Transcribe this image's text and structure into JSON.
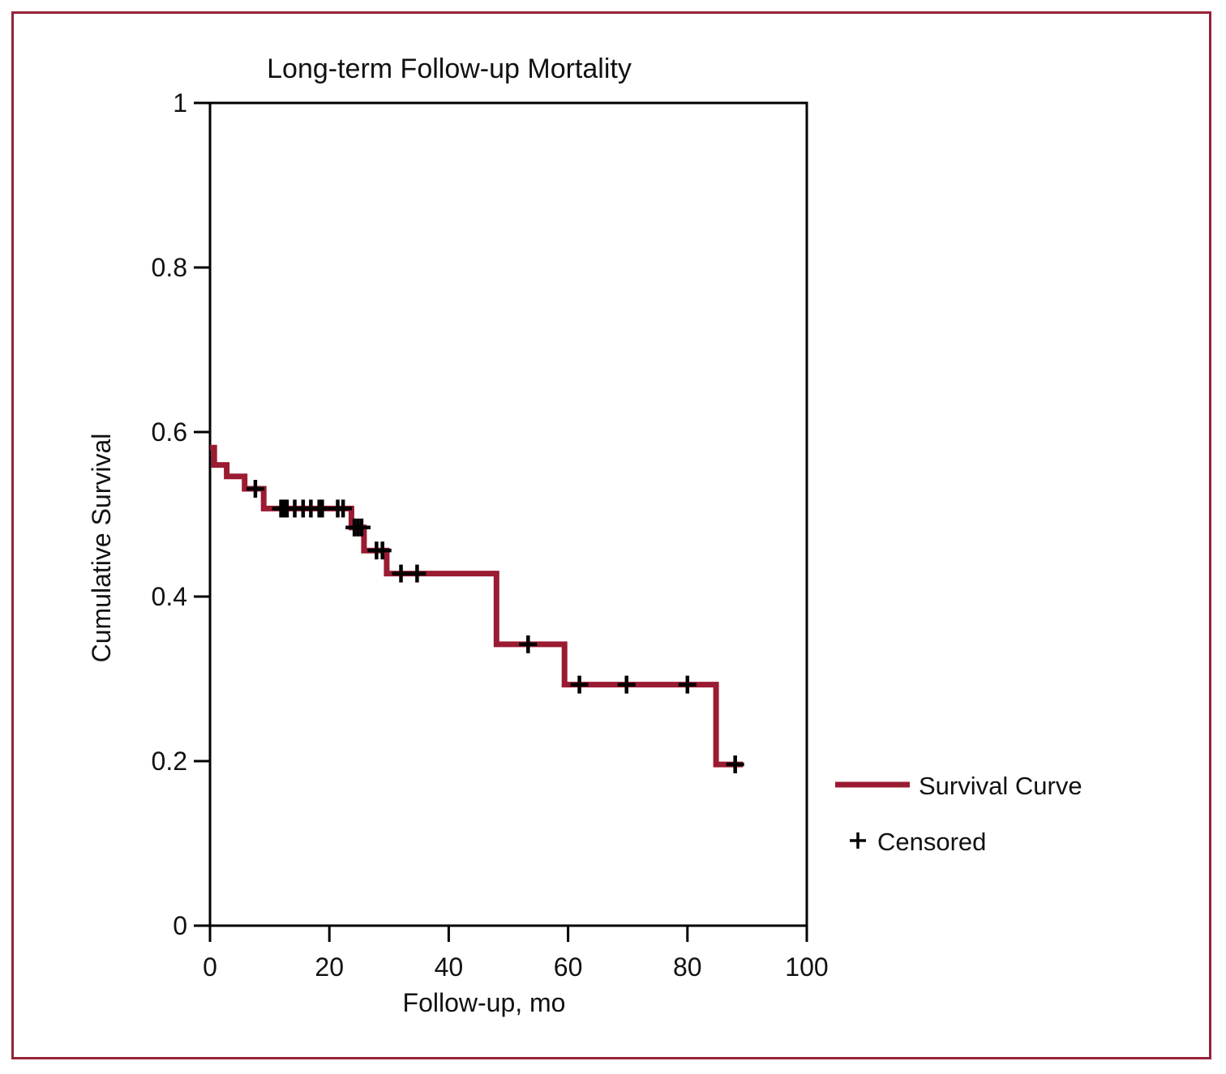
{
  "figure": {
    "border_color": "#962339",
    "background_color": "#ffffff"
  },
  "chart_data": {
    "type": "line",
    "subtype": "kaplan-meier-step-survival",
    "title": "Long-term Follow-up Mortality",
    "xlabel": "Follow-up, mo",
    "ylabel": "Cumulative Survival",
    "xlim": [
      0,
      100
    ],
    "ylim": [
      0,
      1
    ],
    "grid": false,
    "frame": true,
    "xticks": [
      {
        "value": 0,
        "label": "0"
      },
      {
        "value": 20,
        "label": "20"
      },
      {
        "value": 40,
        "label": "40"
      },
      {
        "value": 60,
        "label": "60"
      },
      {
        "value": 80,
        "label": "80"
      },
      {
        "value": 100,
        "label": "100"
      }
    ],
    "yticks": [
      {
        "value": 0,
        "label": "0"
      },
      {
        "value": 0.2,
        "label": "0.2"
      },
      {
        "value": 0.4,
        "label": "0.4"
      },
      {
        "value": 0.6,
        "label": "0.6"
      },
      {
        "value": 0.8,
        "label": "0.8"
      },
      {
        "value": 1,
        "label": "1"
      }
    ],
    "legend": {
      "position": "right-bottom",
      "items": [
        {
          "label": "Survival Curve",
          "marker": "line",
          "color": "#9a1b32"
        },
        {
          "label": "Censored",
          "marker": "plus",
          "color": "#000000"
        }
      ]
    },
    "series": [
      {
        "name": "Survival Curve",
        "color": "#9a1b32",
        "steps": [
          {
            "t": 0,
            "s": 0.581
          },
          {
            "t": 0.7,
            "s": 0.56
          },
          {
            "t": 2.8,
            "s": 0.546
          },
          {
            "t": 5.8,
            "s": 0.531
          },
          {
            "t": 9.0,
            "s": 0.507
          },
          {
            "t": 23.7,
            "s": 0.484
          },
          {
            "t": 25.8,
            "s": 0.456
          },
          {
            "t": 29.6,
            "s": 0.428
          },
          {
            "t": 48.0,
            "s": 0.342
          },
          {
            "t": 59.4,
            "s": 0.293
          },
          {
            "t": 84.8,
            "s": 0.196
          }
        ],
        "end_t": 89.3
      }
    ],
    "censored_marker_color": "#000000",
    "censored": [
      {
        "t": 7.6,
        "s": 0.531
      },
      {
        "t": 11.9,
        "s": 0.507
      },
      {
        "t": 12.4,
        "s": 0.507
      },
      {
        "t": 12.9,
        "s": 0.507
      },
      {
        "t": 14.2,
        "s": 0.507
      },
      {
        "t": 15.6,
        "s": 0.507
      },
      {
        "t": 16.9,
        "s": 0.507
      },
      {
        "t": 18.3,
        "s": 0.507
      },
      {
        "t": 18.8,
        "s": 0.507
      },
      {
        "t": 21.4,
        "s": 0.507
      },
      {
        "t": 22.3,
        "s": 0.507
      },
      {
        "t": 24.2,
        "s": 0.484
      },
      {
        "t": 24.8,
        "s": 0.484
      },
      {
        "t": 25.4,
        "s": 0.484
      },
      {
        "t": 27.9,
        "s": 0.456
      },
      {
        "t": 28.9,
        "s": 0.456
      },
      {
        "t": 32.0,
        "s": 0.428
      },
      {
        "t": 34.7,
        "s": 0.428
      },
      {
        "t": 53.3,
        "s": 0.342
      },
      {
        "t": 61.9,
        "s": 0.293
      },
      {
        "t": 69.8,
        "s": 0.293
      },
      {
        "t": 80.0,
        "s": 0.293
      },
      {
        "t": 88.0,
        "s": 0.196
      }
    ]
  }
}
